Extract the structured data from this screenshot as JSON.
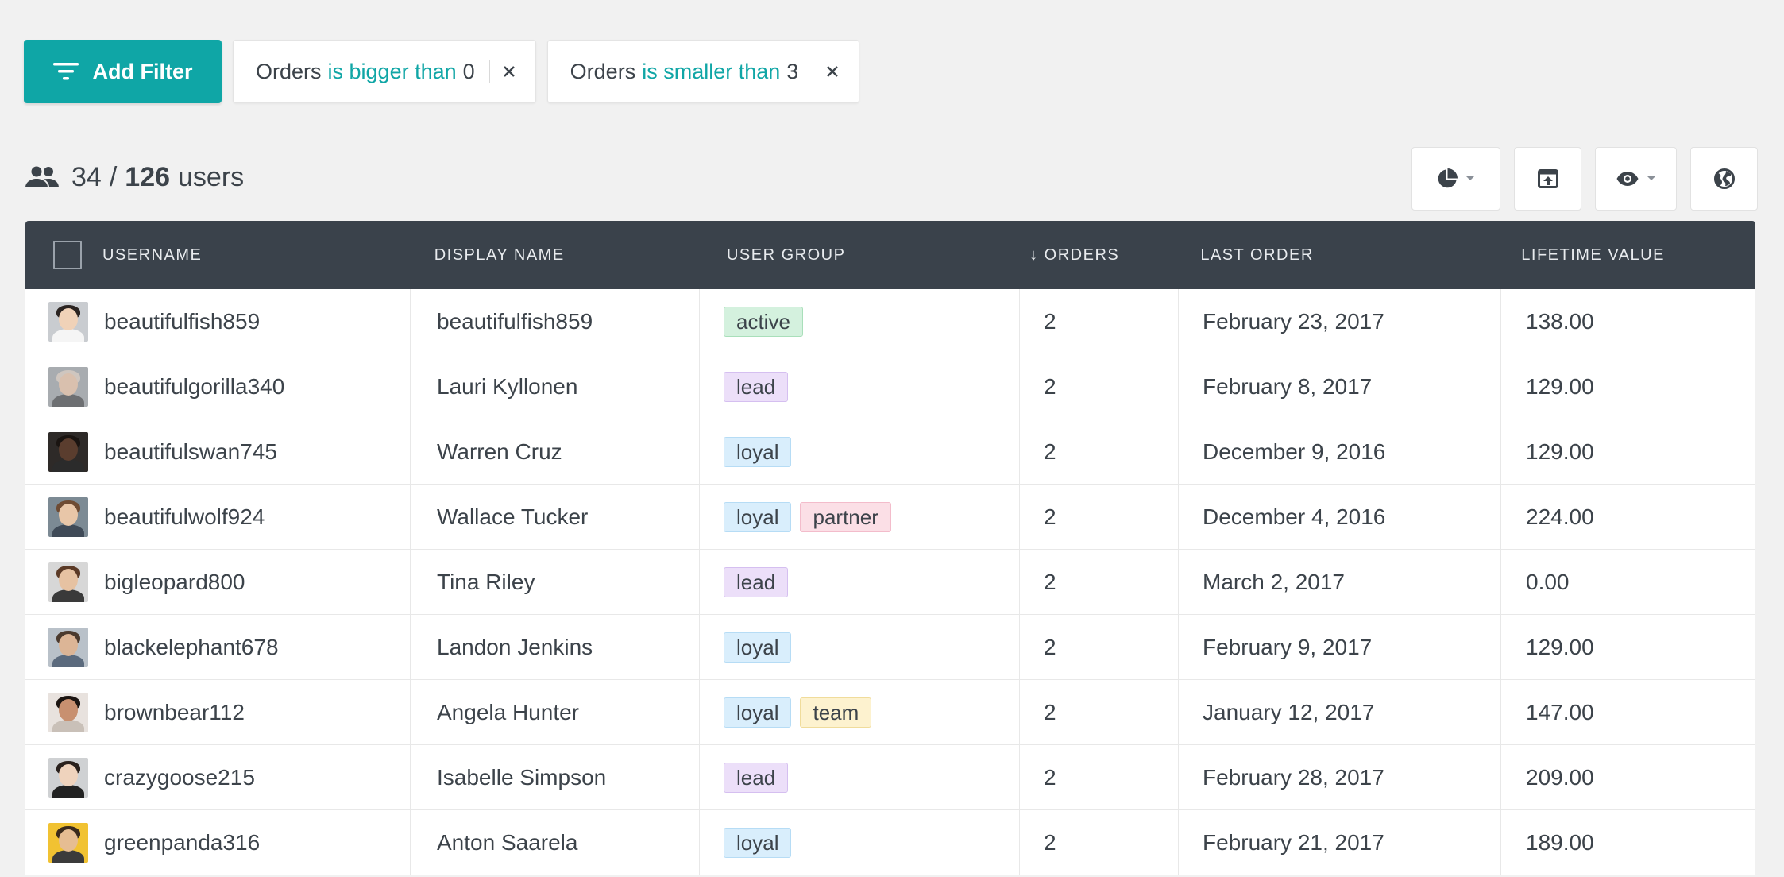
{
  "filters": {
    "add_label": "Add Filter",
    "chips": [
      {
        "field": "Orders",
        "operator": "is bigger than",
        "value": "0"
      },
      {
        "field": "Orders",
        "operator": "is smaller than",
        "value": "3"
      }
    ]
  },
  "summary": {
    "shown": "34",
    "separator": "/",
    "total": "126",
    "unit": "users"
  },
  "toolbar": {
    "icons": [
      "pie-chart-icon",
      "export-icon",
      "eye-icon",
      "globe-icon"
    ]
  },
  "table": {
    "headers": [
      "USERNAME",
      "DISPLAY NAME",
      "USER GROUP",
      "↓ ORDERS",
      "LAST ORDER",
      "LIFETIME VALUE"
    ],
    "rows": [
      {
        "username": "beautifulfish859",
        "display_name": "beautifulfish859",
        "groups": [
          "active"
        ],
        "orders": "2",
        "last_order": "February 23, 2017",
        "lifetime_value": "138.00"
      },
      {
        "username": "beautifulgorilla340",
        "display_name": "Lauri Kyllonen",
        "groups": [
          "lead"
        ],
        "orders": "2",
        "last_order": "February 8, 2017",
        "lifetime_value": "129.00"
      },
      {
        "username": "beautifulswan745",
        "display_name": "Warren Cruz",
        "groups": [
          "loyal"
        ],
        "orders": "2",
        "last_order": "December 9, 2016",
        "lifetime_value": "129.00"
      },
      {
        "username": "beautifulwolf924",
        "display_name": "Wallace Tucker",
        "groups": [
          "loyal",
          "partner"
        ],
        "orders": "2",
        "last_order": "December 4, 2016",
        "lifetime_value": "224.00"
      },
      {
        "username": "bigleopard800",
        "display_name": "Tina Riley",
        "groups": [
          "lead"
        ],
        "orders": "2",
        "last_order": "March 2, 2017",
        "lifetime_value": "0.00"
      },
      {
        "username": "blackelephant678",
        "display_name": "Landon Jenkins",
        "groups": [
          "loyal"
        ],
        "orders": "2",
        "last_order": "February 9, 2017",
        "lifetime_value": "129.00"
      },
      {
        "username": "brownbear112",
        "display_name": "Angela Hunter",
        "groups": [
          "loyal",
          "team"
        ],
        "orders": "2",
        "last_order": "January 12, 2017",
        "lifetime_value": "147.00"
      },
      {
        "username": "crazygoose215",
        "display_name": "Isabelle Simpson",
        "groups": [
          "lead"
        ],
        "orders": "2",
        "last_order": "February 28, 2017",
        "lifetime_value": "209.00"
      },
      {
        "username": "greenpanda316",
        "display_name": "Anton Saarela",
        "groups": [
          "loyal"
        ],
        "orders": "2",
        "last_order": "February 21, 2017",
        "lifetime_value": "189.00"
      }
    ]
  }
}
